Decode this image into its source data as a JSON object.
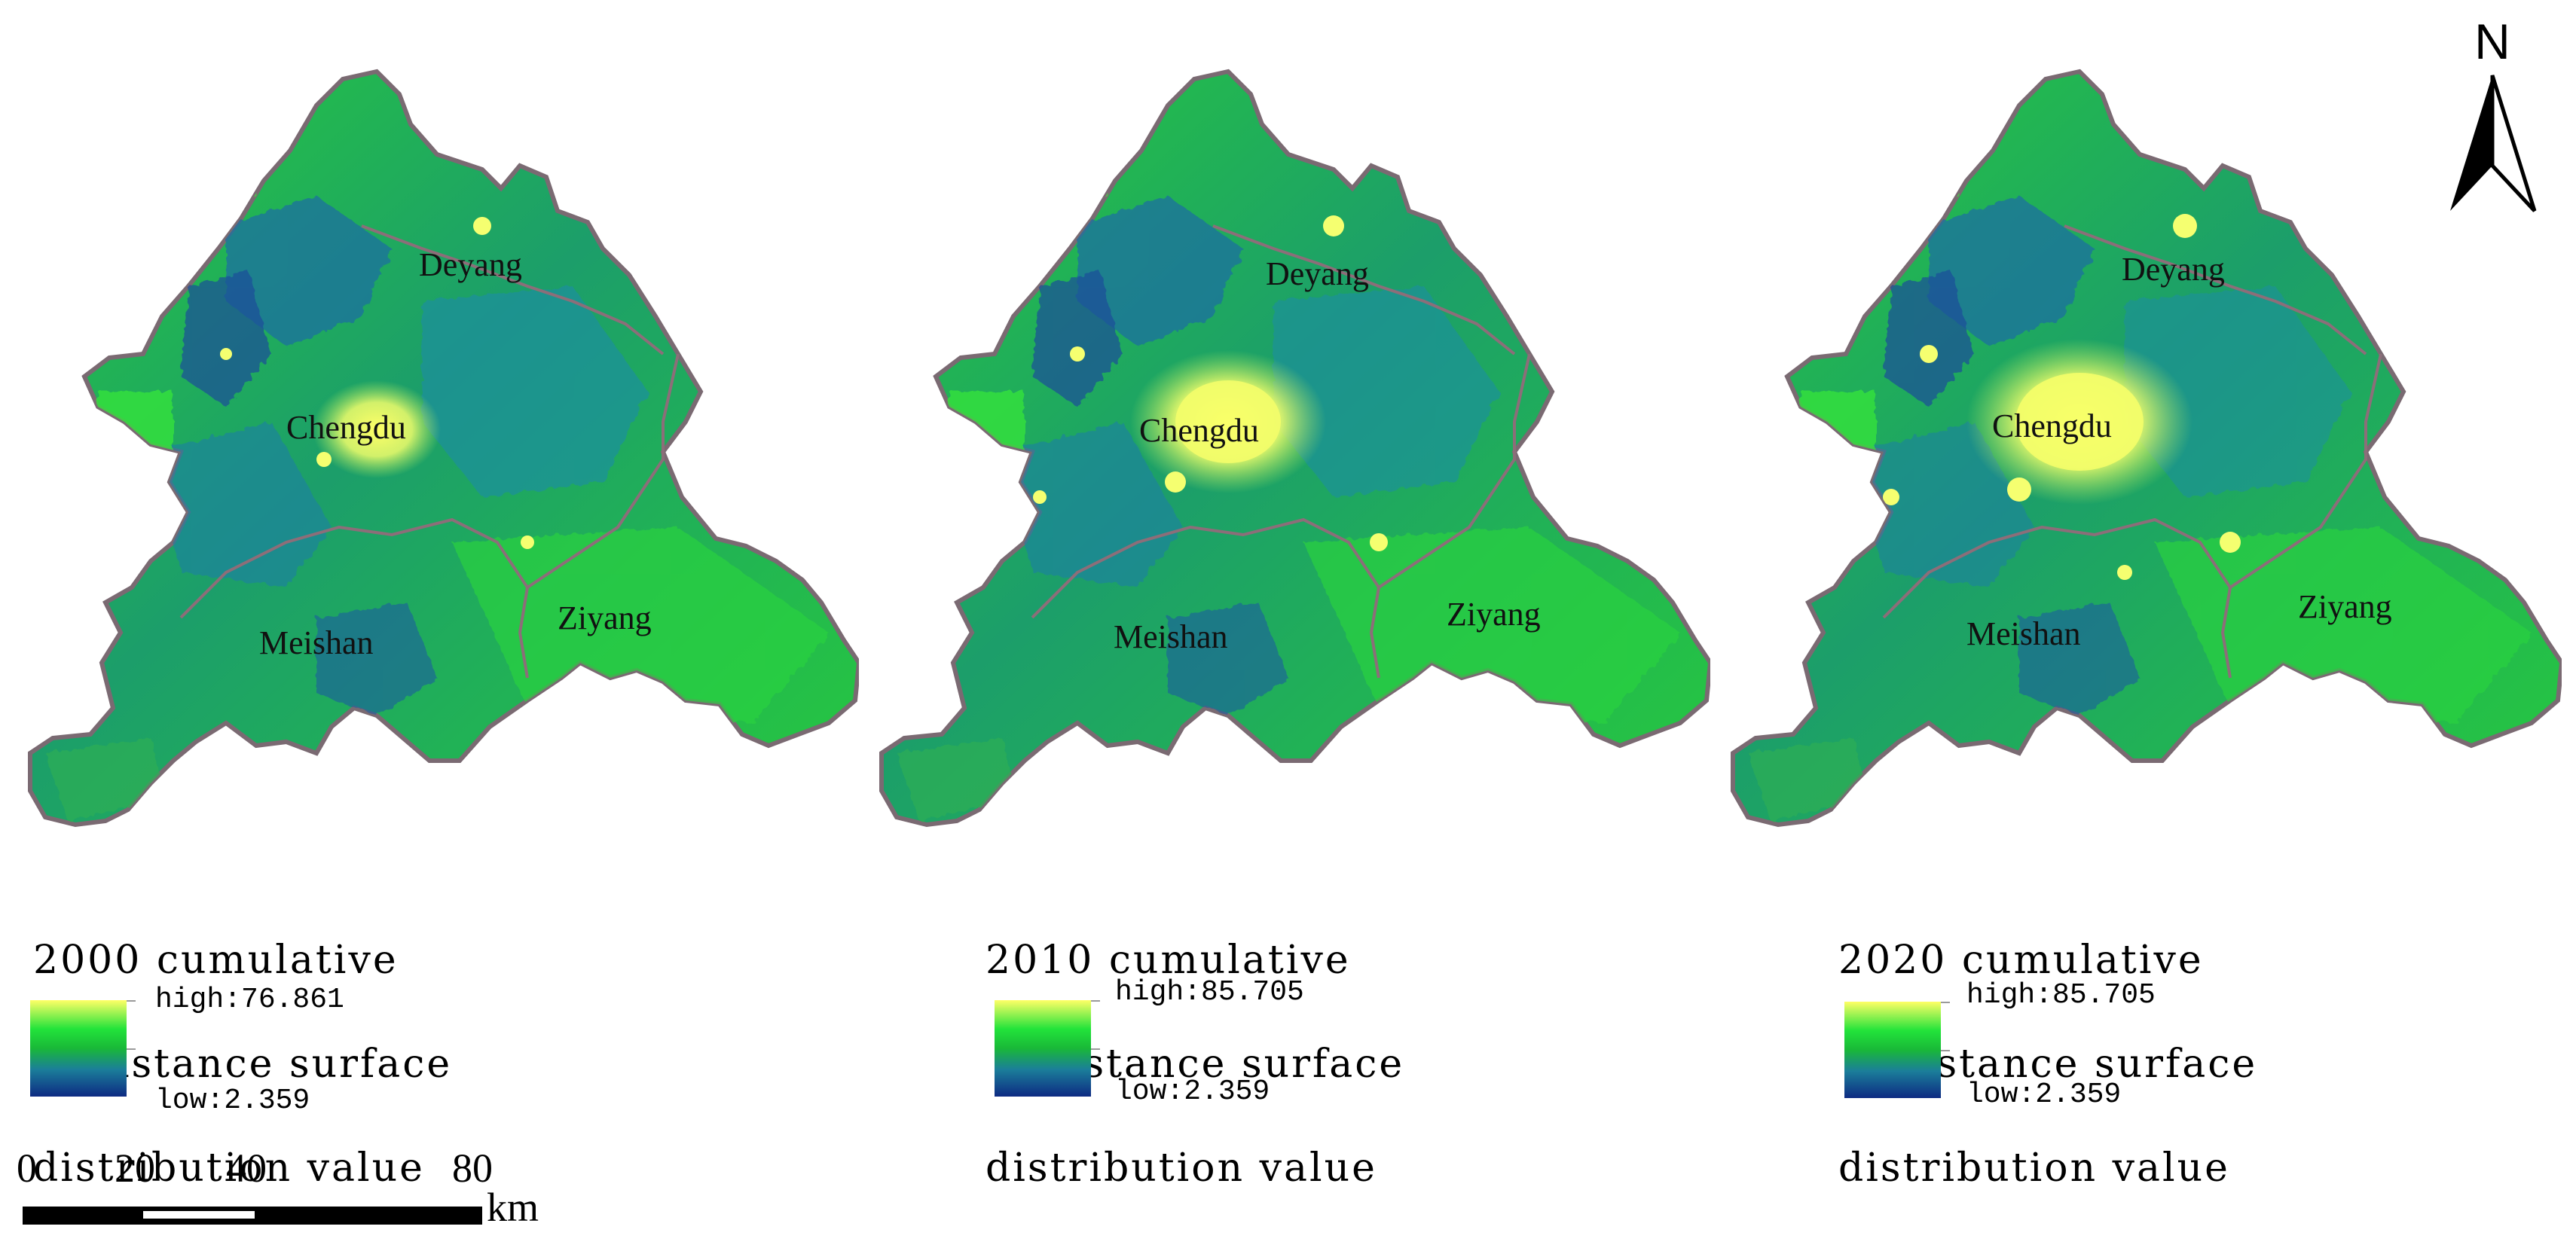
{
  "maps": [
    {
      "year": "2000",
      "title_line1": "2000 cumulative",
      "title_line2": " resistance surface",
      "title_line3": "distribution value",
      "high": "high:76.861",
      "low": "low:2.359",
      "labels": {
        "deyang": "Deyang",
        "chengdu": "Chengdu",
        "meishan": "Meishan",
        "ziyang": "Ziyang"
      }
    },
    {
      "year": "2010",
      "title_line1": "2010 cumulative",
      "title_line2": " resistance surface",
      "title_line3": "distribution value",
      "high": "high:85.705",
      "low": "low:2.359",
      "labels": {
        "deyang": "Deyang",
        "chengdu": "Chengdu",
        "meishan": "Meishan",
        "ziyang": "Ziyang"
      }
    },
    {
      "year": "2020",
      "title_line1": "2020 cumulative",
      "title_line2": " resistance surface",
      "title_line3": "distribution value",
      "high": "high:85.705",
      "low": "low:2.359",
      "labels": {
        "deyang": "Deyang",
        "chengdu": "Chengdu",
        "meishan": "Meishan",
        "ziyang": "Ziyang"
      }
    }
  ],
  "scale_bar": {
    "ticks": [
      "0",
      "20",
      "40",
      "80"
    ],
    "unit": "km"
  },
  "north_arrow": {
    "letter": "N",
    "icon": "north-arrow-icon"
  },
  "colors": {
    "high": "#ffff66",
    "mid_high": "#22e33a",
    "mid": "#19b838",
    "mid_low": "#1b7e9a",
    "low": "#0d2a82",
    "boundary": "#7a6a72"
  }
}
